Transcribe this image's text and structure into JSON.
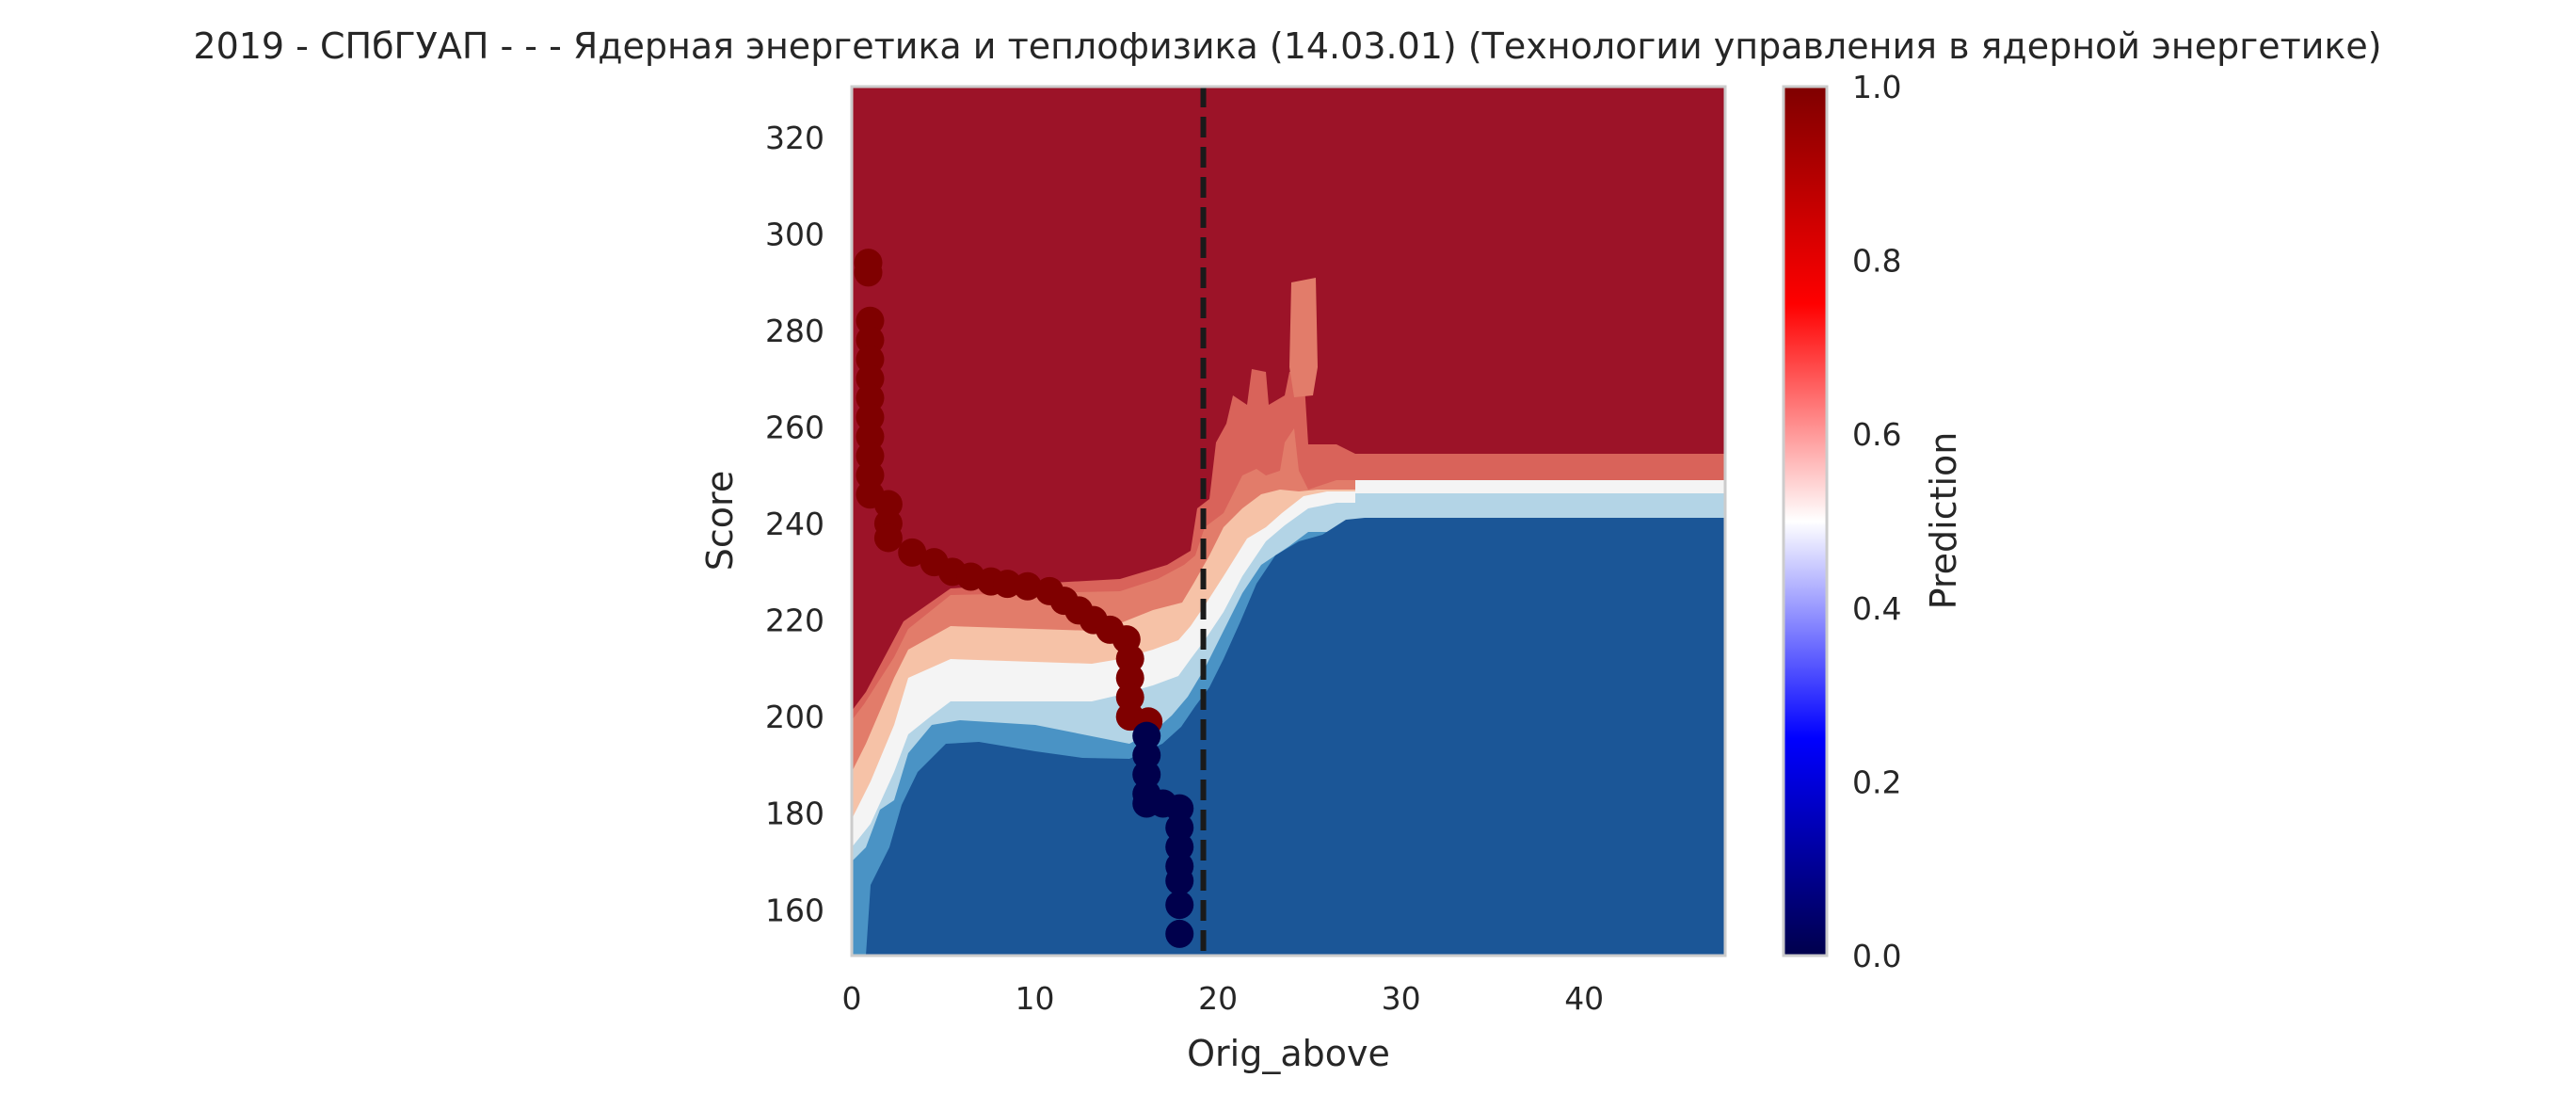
{
  "chart_data": {
    "type": "contour",
    "title": "2019 - СПбГУАП - - - Ядерная энергетика и теплофизика (14.03.01) (Технологии управления в ядерной энергетике)",
    "xlabel": "Orig_above",
    "ylabel": "Score",
    "xlim": [
      0,
      47.7
    ],
    "ylim": [
      150.5,
      330.5
    ],
    "x_ticks": [
      0,
      10,
      20,
      30,
      40
    ],
    "y_ticks": [
      160,
      180,
      200,
      220,
      240,
      260,
      280,
      300,
      320
    ],
    "grid": false,
    "colorbar": {
      "label": "Prediction",
      "colormap": "seismic",
      "range": [
        0.0,
        1.0
      ],
      "ticks": [
        "0.0",
        "0.2",
        "0.4",
        "0.6",
        "0.8",
        "1.0"
      ]
    },
    "vertical_line": {
      "x": 19.2,
      "style": "dashed",
      "color": "#1a1a1a"
    },
    "contour_levels": [
      {
        "range": "0.0-0.1",
        "color": "#1b5697"
      },
      {
        "range": "0.1-0.2",
        "color": "#4a93c5"
      },
      {
        "range": "0.2-0.3",
        "color": "#b3d4e6"
      },
      {
        "range": "0.3-0.5",
        "color": "#f4f4f4"
      },
      {
        "range": "0.5-0.6",
        "color": "#f6c2a7"
      },
      {
        "range": "0.6-0.7",
        "color": "#e27c6a"
      },
      {
        "range": "0.7-0.8",
        "color": "#d9635a"
      },
      {
        "range": "0.8-1.0",
        "color": "#9c1328"
      }
    ],
    "scatter_points": {
      "admitted": {
        "color": "#7f0000",
        "points": [
          [
            0.9,
            294
          ],
          [
            0.9,
            292
          ],
          [
            1.0,
            282
          ],
          [
            1.0,
            278
          ],
          [
            1.0,
            274
          ],
          [
            1.0,
            270
          ],
          [
            1.0,
            266
          ],
          [
            1.0,
            262
          ],
          [
            1.0,
            258
          ],
          [
            1.0,
            254
          ],
          [
            1.0,
            250
          ],
          [
            1.0,
            246
          ],
          [
            2.0,
            244
          ],
          [
            2.0,
            240
          ],
          [
            2.0,
            237
          ],
          [
            3.3,
            234
          ],
          [
            4.5,
            232
          ],
          [
            5.5,
            230
          ],
          [
            6.5,
            229
          ],
          [
            7.6,
            228
          ],
          [
            8.5,
            227.5
          ],
          [
            9.6,
            227
          ],
          [
            10.8,
            226
          ],
          [
            11.6,
            224
          ],
          [
            12.4,
            222
          ],
          [
            13.2,
            220
          ],
          [
            14.1,
            218
          ],
          [
            15.0,
            216
          ],
          [
            15.2,
            212
          ],
          [
            15.2,
            208
          ],
          [
            15.2,
            204
          ],
          [
            15.2,
            200
          ],
          [
            16.2,
            199
          ]
        ]
      },
      "rejected": {
        "color": "#00004c",
        "points": [
          [
            16.1,
            196
          ],
          [
            16.1,
            192
          ],
          [
            16.1,
            188
          ],
          [
            16.1,
            184
          ],
          [
            16.1,
            182
          ],
          [
            17.0,
            182
          ],
          [
            17.9,
            181
          ],
          [
            17.9,
            177
          ],
          [
            17.9,
            173
          ],
          [
            17.9,
            169
          ],
          [
            17.9,
            166
          ],
          [
            17.9,
            161
          ],
          [
            17.9,
            155
          ]
        ]
      }
    }
  }
}
